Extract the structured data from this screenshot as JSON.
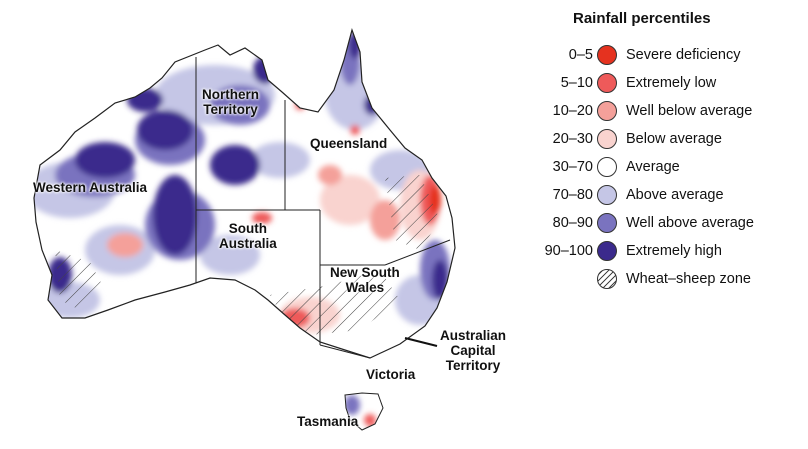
{
  "legend": {
    "title": "Rainfall percentiles",
    "items": [
      {
        "range": "0–5",
        "label": "Severe deficiency",
        "color": "#e5321f"
      },
      {
        "range": "5–10",
        "label": "Extremely low",
        "color": "#ee5a5a"
      },
      {
        "range": "10–20",
        "label": "Well below average",
        "color": "#f4a09a"
      },
      {
        "range": "20–30",
        "label": "Below average",
        "color": "#f9d3cf"
      },
      {
        "range": "30–70",
        "label": "Average",
        "color": "#ffffff"
      },
      {
        "range": "70–80",
        "label": "Above average",
        "color": "#c5c6e6"
      },
      {
        "range": "80–90",
        "label": "Well above average",
        "color": "#7a73bf"
      },
      {
        "range": "90–100",
        "label": "Extremely high",
        "color": "#3b2a8c"
      }
    ],
    "hatch_label": "Wheat–sheep zone"
  },
  "map": {
    "labels": {
      "wa": "Western Australia",
      "nt_1": "Northern",
      "nt_2": "Territory",
      "qld": "Queensland",
      "sa_1": "South",
      "sa_2": "Australia",
      "nsw_1": "New South",
      "nsw_2": "Wales",
      "act_1": "Australian",
      "act_2": "Capital",
      "act_3": "Territory",
      "vic": "Victoria",
      "tas": "Tasmania"
    }
  }
}
